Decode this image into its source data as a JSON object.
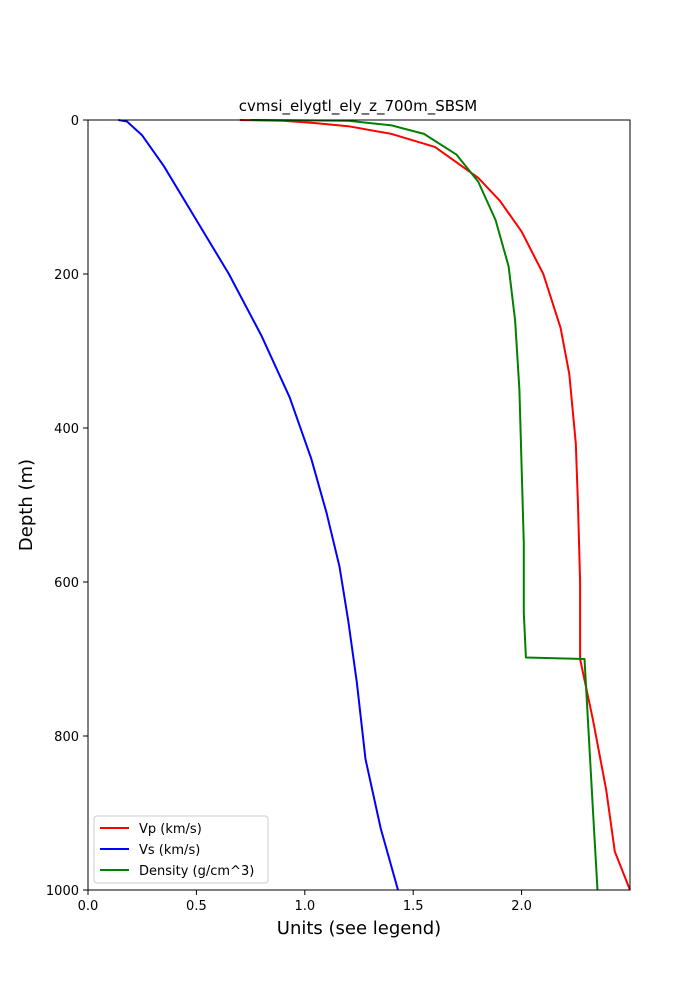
{
  "chart_data": {
    "type": "line",
    "title": "cvmsi_elygtl_ely_z_700m_SBSM",
    "xlabel": "Units (see legend)",
    "ylabel": "Depth (m)",
    "xlim": [
      0,
      2.5
    ],
    "ylim": [
      1000,
      0
    ],
    "y_inverted": true,
    "grid": false,
    "legend_position": "lower-left",
    "x_ticks": [
      0.0,
      0.5,
      1.0,
      1.5,
      2.0
    ],
    "x_tick_labels": [
      "0.0",
      "0.5",
      "1.0",
      "1.5",
      "2.0"
    ],
    "y_ticks": [
      0,
      200,
      400,
      600,
      800,
      1000
    ],
    "y_tick_labels": [
      "0",
      "200",
      "400",
      "600",
      "800",
      "1000"
    ],
    "series": [
      {
        "name": "Vp (km/s)",
        "color": "#ff0000",
        "points": [
          [
            0.7,
            0
          ],
          [
            0.9,
            1
          ],
          [
            1.05,
            4
          ],
          [
            1.2,
            8
          ],
          [
            1.4,
            18
          ],
          [
            1.6,
            35
          ],
          [
            1.8,
            75
          ],
          [
            1.9,
            105
          ],
          [
            2.0,
            145
          ],
          [
            2.1,
            200
          ],
          [
            2.18,
            270
          ],
          [
            2.22,
            330
          ],
          [
            2.25,
            420
          ],
          [
            2.26,
            500
          ],
          [
            2.27,
            600
          ],
          [
            2.27,
            700
          ],
          [
            2.33,
            780
          ],
          [
            2.39,
            870
          ],
          [
            2.43,
            950
          ],
          [
            2.5,
            1000
          ]
        ]
      },
      {
        "name": "Vs (km/s)",
        "color": "#0000ff",
        "points": [
          [
            0.14,
            0
          ],
          [
            0.18,
            2
          ],
          [
            0.25,
            20
          ],
          [
            0.35,
            60
          ],
          [
            0.5,
            130
          ],
          [
            0.65,
            200
          ],
          [
            0.8,
            280
          ],
          [
            0.93,
            360
          ],
          [
            1.03,
            440
          ],
          [
            1.1,
            510
          ],
          [
            1.16,
            580
          ],
          [
            1.2,
            650
          ],
          [
            1.24,
            730
          ],
          [
            1.28,
            830
          ],
          [
            1.35,
            920
          ],
          [
            1.43,
            1000
          ]
        ]
      },
      {
        "name": "Density (g/cm^3)",
        "color": "#008000",
        "points": [
          [
            0.75,
            0
          ],
          [
            1.2,
            1
          ],
          [
            1.4,
            7
          ],
          [
            1.55,
            18
          ],
          [
            1.7,
            45
          ],
          [
            1.8,
            80
          ],
          [
            1.88,
            130
          ],
          [
            1.94,
            190
          ],
          [
            1.97,
            260
          ],
          [
            1.99,
            350
          ],
          [
            2.0,
            450
          ],
          [
            2.01,
            550
          ],
          [
            2.01,
            640
          ],
          [
            2.02,
            698
          ],
          [
            2.29,
            700
          ],
          [
            2.31,
            800
          ],
          [
            2.33,
            900
          ],
          [
            2.35,
            1000
          ]
        ]
      }
    ]
  }
}
